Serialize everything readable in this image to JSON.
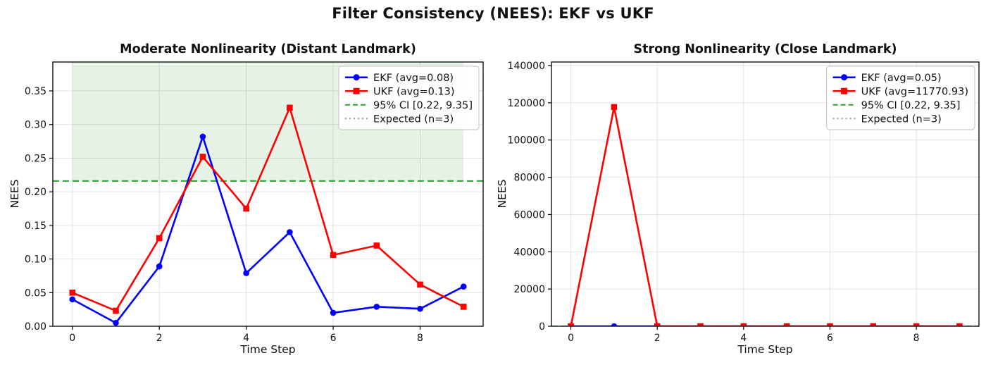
{
  "suptitle": "Filter Consistency (NEES): EKF vs UKF",
  "chart_data": [
    {
      "type": "line",
      "title": "Moderate Nonlinearity (Distant Landmark)",
      "xlabel": "Time Step",
      "ylabel": "NEES",
      "x": [
        0,
        1,
        2,
        3,
        4,
        5,
        6,
        7,
        8,
        9
      ],
      "series": [
        {
          "name": "EKF (avg=0.08)",
          "color": "#0000ff",
          "marker": "circle",
          "values": [
            0.04,
            0.005,
            0.089,
            0.282,
            0.079,
            0.14,
            0.02,
            0.029,
            0.026,
            0.059
          ]
        },
        {
          "name": "UKF (avg=0.13)",
          "color": "#ff0000",
          "marker": "square",
          "values": [
            0.05,
            0.023,
            0.131,
            0.252,
            0.175,
            0.325,
            0.106,
            0.12,
            0.062,
            0.029
          ]
        }
      ],
      "ci": {
        "label": "95% CI [0.22, 9.35]",
        "lower": 0.216,
        "upper": 9.348,
        "band_x": [
          0,
          9
        ],
        "color": "#2ca02c",
        "fill": "rgba(0,128,0,0.10)"
      },
      "expected": {
        "label": "Expected (n=3)",
        "value": 3,
        "color": "#999999"
      },
      "xlim": [
        -0.45,
        9.45
      ],
      "ylim": [
        0,
        0.393
      ],
      "xticks": [
        0,
        2,
        4,
        6,
        8
      ],
      "xtick_labels": [
        "0",
        "2",
        "4",
        "6",
        "8"
      ],
      "yticks": [
        0,
        0.05,
        0.1,
        0.15,
        0.2,
        0.25,
        0.3,
        0.35
      ],
      "ytick_labels": [
        "0.00",
        "0.05",
        "0.10",
        "0.15",
        "0.20",
        "0.25",
        "0.30",
        "0.35"
      ],
      "grid": true,
      "legend_loc": "upper right"
    },
    {
      "type": "line",
      "title": "Strong Nonlinearity (Close Landmark)",
      "xlabel": "Time Step",
      "ylabel": "NEES",
      "x": [
        0,
        1,
        2,
        3,
        4,
        5,
        6,
        7,
        8,
        9
      ],
      "series": [
        {
          "name": "EKF (avg=0.05)",
          "color": "#0000ff",
          "marker": "circle",
          "values": [
            0.05,
            0.05,
            0.05,
            0.05,
            0.05,
            0.05,
            0.05,
            0.05,
            0.05,
            0.05
          ]
        },
        {
          "name": "UKF (avg=11770.93)",
          "color": "#ff0000",
          "marker": "square",
          "values": [
            0.5,
            117705,
            0.5,
            0.5,
            0.5,
            0.5,
            0.5,
            0.5,
            0.5,
            0.5
          ]
        }
      ],
      "ci": {
        "label": "95% CI [0.22, 9.35]",
        "lower": 0.216,
        "upper": 9.348,
        "band_x": [
          0,
          9
        ],
        "color": "#2ca02c",
        "fill": "rgba(0,128,0,0.10)"
      },
      "expected": {
        "label": "Expected (n=3)",
        "value": 3,
        "color": "#999999"
      },
      "xlim": [
        -0.45,
        9.45
      ],
      "ylim": [
        0,
        141900
      ],
      "xticks": [
        0,
        2,
        4,
        6,
        8
      ],
      "xtick_labels": [
        "0",
        "2",
        "4",
        "6",
        "8"
      ],
      "yticks": [
        0,
        20000,
        40000,
        60000,
        80000,
        100000,
        120000,
        140000
      ],
      "ytick_labels": [
        "0",
        "20000",
        "40000",
        "60000",
        "80000",
        "100000",
        "120000",
        "140000"
      ],
      "grid": true,
      "legend_loc": "upper right"
    }
  ],
  "style": {
    "grid_color": "#e2e2e2",
    "spine_color": "#000000",
    "text_color": "#111111",
    "legend_border": "#cccccc",
    "legend_bg": "rgba(255,255,255,0.9)"
  }
}
